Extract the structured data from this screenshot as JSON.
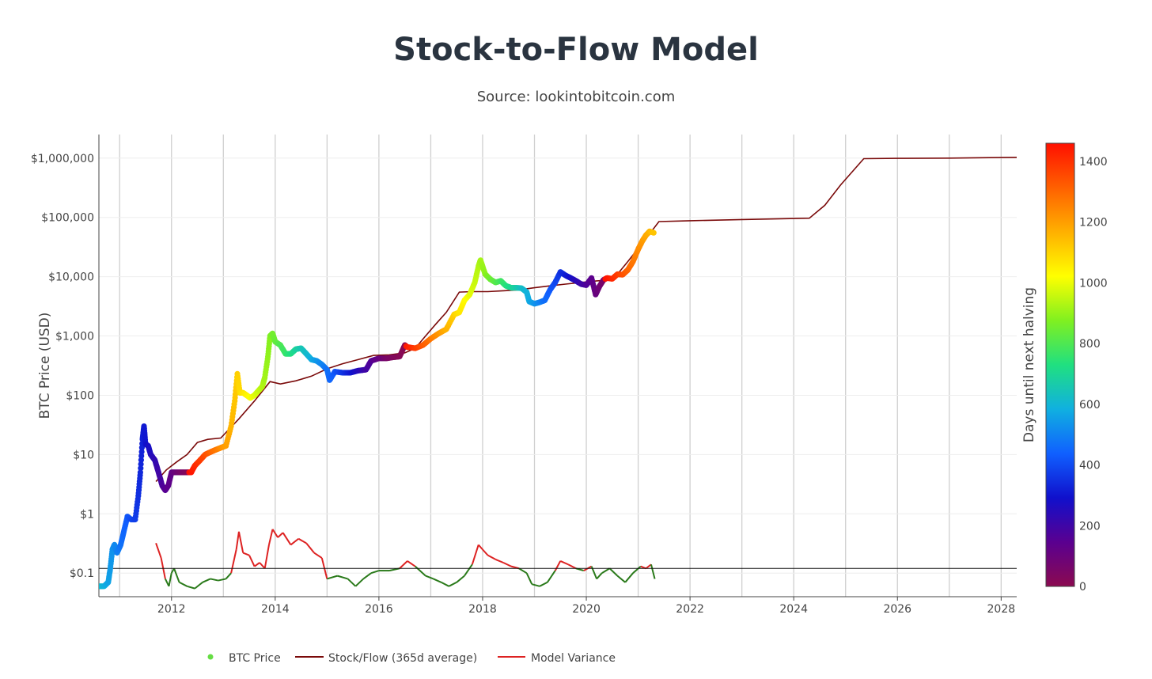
{
  "title": "Stock-to-Flow Model",
  "subtitle": "Source: lookintobitcoin.com",
  "chart_data": {
    "type": "scatter",
    "title": "Stock-to-Flow Model",
    "subtitle": "Source: lookintobitcoin.com",
    "ylabel": "BTC Price (USD)",
    "xlabel": "",
    "yscale": "log",
    "xlim": [
      2010.6,
      2028.3
    ],
    "ylim": [
      0.04,
      2500000
    ],
    "grid": true,
    "x_ticks": [
      "2012",
      "2014",
      "2016",
      "2018",
      "2020",
      "2022",
      "2024",
      "2026",
      "2028"
    ],
    "x_tick_values": [
      2012,
      2014,
      2016,
      2018,
      2020,
      2022,
      2024,
      2026,
      2028
    ],
    "y_ticks": [
      "$0.1",
      "$1",
      "$10",
      "$100",
      "$1,000",
      "$10,000",
      "$100,000",
      "$1,000,000"
    ],
    "y_tick_values": [
      0.1,
      1,
      10,
      100,
      1000,
      10000,
      100000,
      1000000
    ],
    "colorbar": {
      "title": "Days until next halving",
      "min": 0,
      "max": 1460,
      "ticks": [
        "0",
        "200",
        "400",
        "600",
        "800",
        "1000",
        "1200",
        "1400"
      ],
      "tick_values": [
        0,
        200,
        400,
        600,
        800,
        1000,
        1200,
        1400
      ],
      "colors": [
        "#8b0a50",
        "#5a0090",
        "#1010cc",
        "#1060ff",
        "#10b0e0",
        "#20e080",
        "#80f020",
        "#ffff00",
        "#ffb000",
        "#ff6000",
        "#ff1000"
      ]
    },
    "legend_position": "bottom",
    "reference_line_y": 0.12,
    "series": [
      {
        "name": "BTC Price",
        "mode": "markers",
        "color": "#66dd44",
        "points": [
          [
            2010.6,
            0.06,
            625
          ],
          [
            2010.7,
            0.06,
            590
          ],
          [
            2010.78,
            0.07,
            560
          ],
          [
            2010.82,
            0.12,
            545
          ],
          [
            2010.86,
            0.25,
            530
          ],
          [
            2010.9,
            0.3,
            515
          ],
          [
            2010.95,
            0.22,
            500
          ],
          [
            2011.02,
            0.3,
            470
          ],
          [
            2011.08,
            0.5,
            450
          ],
          [
            2011.15,
            0.9,
            425
          ],
          [
            2011.22,
            0.8,
            400
          ],
          [
            2011.3,
            0.8,
            375
          ],
          [
            2011.36,
            2,
            350
          ],
          [
            2011.4,
            5,
            335
          ],
          [
            2011.44,
            18,
            320
          ],
          [
            2011.47,
            30,
            310
          ],
          [
            2011.5,
            15,
            300
          ],
          [
            2011.55,
            14,
            280
          ],
          [
            2011.6,
            10,
            260
          ],
          [
            2011.68,
            8,
            230
          ],
          [
            2011.75,
            5,
            200
          ],
          [
            2011.82,
            3,
            175
          ],
          [
            2011.88,
            2.5,
            155
          ],
          [
            2011.94,
            3,
            135
          ],
          [
            2012.0,
            5,
            125
          ],
          [
            2012.1,
            5,
            90
          ],
          [
            2012.2,
            5,
            55
          ],
          [
            2012.3,
            5,
            25
          ],
          [
            2012.38,
            5,
            1455
          ],
          [
            2012.45,
            6.5,
            1420
          ],
          [
            2012.55,
            8,
            1385
          ],
          [
            2012.65,
            10,
            1350
          ],
          [
            2012.75,
            11,
            1310
          ],
          [
            2012.85,
            12,
            1275
          ],
          [
            2012.95,
            13,
            1235
          ],
          [
            2013.05,
            14,
            1200
          ],
          [
            2013.15,
            30,
            1160
          ],
          [
            2013.22,
            80,
            1130
          ],
          [
            2013.27,
            230,
            1110
          ],
          [
            2013.32,
            110,
            1090
          ],
          [
            2013.38,
            110,
            1070
          ],
          [
            2013.45,
            100,
            1045
          ],
          [
            2013.52,
            90,
            1020
          ],
          [
            2013.6,
            100,
            990
          ],
          [
            2013.68,
            120,
            960
          ],
          [
            2013.75,
            140,
            935
          ],
          [
            2013.8,
            200,
            915
          ],
          [
            2013.86,
            450,
            895
          ],
          [
            2013.9,
            1000,
            880
          ],
          [
            2013.95,
            1100,
            860
          ],
          [
            2014.0,
            800,
            840
          ],
          [
            2014.1,
            700,
            800
          ],
          [
            2014.2,
            500,
            765
          ],
          [
            2014.3,
            500,
            730
          ],
          [
            2014.4,
            600,
            690
          ],
          [
            2014.5,
            620,
            655
          ],
          [
            2014.6,
            500,
            620
          ],
          [
            2014.7,
            400,
            580
          ],
          [
            2014.8,
            380,
            545
          ],
          [
            2014.9,
            330,
            510
          ],
          [
            2015.0,
            270,
            470
          ],
          [
            2015.05,
            180,
            455
          ],
          [
            2015.15,
            250,
            420
          ],
          [
            2015.3,
            240,
            365
          ],
          [
            2015.45,
            240,
            310
          ],
          [
            2015.6,
            260,
            255
          ],
          [
            2015.75,
            270,
            200
          ],
          [
            2015.85,
            380,
            165
          ],
          [
            2016.0,
            420,
            110
          ],
          [
            2016.15,
            420,
            55
          ],
          [
            2016.3,
            440,
            30
          ],
          [
            2016.4,
            450,
            15
          ],
          [
            2016.5,
            700,
            5
          ],
          [
            2016.55,
            650,
            1440
          ],
          [
            2016.7,
            620,
            1385
          ],
          [
            2016.85,
            700,
            1330
          ],
          [
            2017.0,
            900,
            1275
          ],
          [
            2017.15,
            1100,
            1220
          ],
          [
            2017.3,
            1300,
            1165
          ],
          [
            2017.45,
            2300,
            1110
          ],
          [
            2017.55,
            2500,
            1070
          ],
          [
            2017.65,
            4000,
            1035
          ],
          [
            2017.75,
            5000,
            995
          ],
          [
            2017.85,
            8000,
            960
          ],
          [
            2017.92,
            15000,
            935
          ],
          [
            2017.96,
            19000,
            920
          ],
          [
            2018.05,
            11000,
            890
          ],
          [
            2018.15,
            9000,
            850
          ],
          [
            2018.25,
            8000,
            815
          ],
          [
            2018.35,
            8500,
            780
          ],
          [
            2018.45,
            7000,
            740
          ],
          [
            2018.55,
            6500,
            705
          ],
          [
            2018.65,
            6500,
            670
          ],
          [
            2018.75,
            6400,
            630
          ],
          [
            2018.85,
            5500,
            595
          ],
          [
            2018.9,
            3800,
            575
          ],
          [
            2019.0,
            3500,
            540
          ],
          [
            2019.1,
            3700,
            505
          ],
          [
            2019.2,
            4000,
            465
          ],
          [
            2019.3,
            6000,
            430
          ],
          [
            2019.4,
            8000,
            395
          ],
          [
            2019.5,
            12000,
            355
          ],
          [
            2019.6,
            10500,
            320
          ],
          [
            2019.7,
            9500,
            285
          ],
          [
            2019.8,
            8500,
            245
          ],
          [
            2019.9,
            7500,
            210
          ],
          [
            2020.0,
            7200,
            175
          ],
          [
            2020.1,
            9500,
            140
          ],
          [
            2020.18,
            5000,
            110
          ],
          [
            2020.25,
            6800,
            85
          ],
          [
            2020.33,
            8800,
            55
          ],
          [
            2020.4,
            9500,
            1455
          ],
          [
            2020.5,
            9200,
            1420
          ],
          [
            2020.6,
            11000,
            1385
          ],
          [
            2020.7,
            10800,
            1350
          ],
          [
            2020.8,
            13000,
            1310
          ],
          [
            2020.9,
            18000,
            1275
          ],
          [
            2021.0,
            29000,
            1240
          ],
          [
            2021.08,
            40000,
            1210
          ],
          [
            2021.15,
            50000,
            1185
          ],
          [
            2021.22,
            58000,
            1160
          ],
          [
            2021.3,
            55000,
            1130
          ]
        ]
      },
      {
        "name": "Stock/Flow (365d average)",
        "mode": "line",
        "color": "#7a0a0a",
        "points": [
          [
            2011.7,
            3.5
          ],
          [
            2011.9,
            5.5
          ],
          [
            2012.1,
            7.5
          ],
          [
            2012.3,
            10
          ],
          [
            2012.5,
            16
          ],
          [
            2012.7,
            18
          ],
          [
            2012.95,
            19
          ],
          [
            2013.3,
            40
          ],
          [
            2013.6,
            80
          ],
          [
            2013.9,
            170
          ],
          [
            2014.1,
            155
          ],
          [
            2014.4,
            175
          ],
          [
            2014.7,
            210
          ],
          [
            2015.0,
            280
          ],
          [
            2015.3,
            340
          ],
          [
            2015.6,
            400
          ],
          [
            2015.9,
            470
          ],
          [
            2016.2,
            480
          ],
          [
            2016.5,
            520
          ],
          [
            2016.7,
            620
          ],
          [
            2016.9,
            1000
          ],
          [
            2017.1,
            1600
          ],
          [
            2017.3,
            2500
          ],
          [
            2017.55,
            5500
          ],
          [
            2017.8,
            5600
          ],
          [
            2018.1,
            5600
          ],
          [
            2018.4,
            5800
          ],
          [
            2018.7,
            6000
          ],
          [
            2019.0,
            6500
          ],
          [
            2019.3,
            7000
          ],
          [
            2019.6,
            7500
          ],
          [
            2019.9,
            8000
          ],
          [
            2020.2,
            8500
          ],
          [
            2020.4,
            8700
          ],
          [
            2020.6,
            11000
          ],
          [
            2020.8,
            18000
          ],
          [
            2021.0,
            30000
          ],
          [
            2021.2,
            50000
          ],
          [
            2021.4,
            85000
          ],
          [
            2022.0,
            88000
          ],
          [
            2023.0,
            92000
          ],
          [
            2024.3,
            97000
          ],
          [
            2024.6,
            160000
          ],
          [
            2024.9,
            350000
          ],
          [
            2025.35,
            980000
          ],
          [
            2026.0,
            990000
          ],
          [
            2027.0,
            1000000
          ],
          [
            2028.3,
            1030000
          ]
        ]
      },
      {
        "name": "Model Variance",
        "mode": "line",
        "color": "#dd2222",
        "color_below_reference": "#2a7a1a",
        "points": [
          [
            2011.7,
            0.32
          ],
          [
            2011.8,
            0.18
          ],
          [
            2011.88,
            0.08
          ],
          [
            2011.95,
            0.06
          ],
          [
            2012.0,
            0.1
          ],
          [
            2012.05,
            0.12
          ],
          [
            2012.15,
            0.07
          ],
          [
            2012.3,
            0.06
          ],
          [
            2012.45,
            0.055
          ],
          [
            2012.6,
            0.07
          ],
          [
            2012.75,
            0.08
          ],
          [
            2012.9,
            0.075
          ],
          [
            2013.05,
            0.08
          ],
          [
            2013.15,
            0.1
          ],
          [
            2013.25,
            0.25
          ],
          [
            2013.3,
            0.5
          ],
          [
            2013.38,
            0.22
          ],
          [
            2013.5,
            0.2
          ],
          [
            2013.6,
            0.13
          ],
          [
            2013.7,
            0.15
          ],
          [
            2013.8,
            0.12
          ],
          [
            2013.88,
            0.3
          ],
          [
            2013.95,
            0.55
          ],
          [
            2014.05,
            0.4
          ],
          [
            2014.15,
            0.48
          ],
          [
            2014.3,
            0.3
          ],
          [
            2014.45,
            0.38
          ],
          [
            2014.6,
            0.32
          ],
          [
            2014.75,
            0.22
          ],
          [
            2014.9,
            0.18
          ],
          [
            2015.0,
            0.08
          ],
          [
            2015.2,
            0.09
          ],
          [
            2015.4,
            0.08
          ],
          [
            2015.55,
            0.06
          ],
          [
            2015.7,
            0.08
          ],
          [
            2015.85,
            0.1
          ],
          [
            2016.0,
            0.11
          ],
          [
            2016.2,
            0.11
          ],
          [
            2016.4,
            0.12
          ],
          [
            2016.55,
            0.16
          ],
          [
            2016.7,
            0.13
          ],
          [
            2016.9,
            0.09
          ],
          [
            2017.05,
            0.08
          ],
          [
            2017.2,
            0.07
          ],
          [
            2017.35,
            0.06
          ],
          [
            2017.5,
            0.07
          ],
          [
            2017.65,
            0.09
          ],
          [
            2017.8,
            0.14
          ],
          [
            2017.92,
            0.3
          ],
          [
            2018.0,
            0.25
          ],
          [
            2018.1,
            0.2
          ],
          [
            2018.25,
            0.17
          ],
          [
            2018.4,
            0.15
          ],
          [
            2018.55,
            0.13
          ],
          [
            2018.7,
            0.12
          ],
          [
            2018.85,
            0.1
          ],
          [
            2018.95,
            0.065
          ],
          [
            2019.1,
            0.06
          ],
          [
            2019.25,
            0.07
          ],
          [
            2019.4,
            0.11
          ],
          [
            2019.5,
            0.16
          ],
          [
            2019.65,
            0.14
          ],
          [
            2019.8,
            0.12
          ],
          [
            2019.95,
            0.11
          ],
          [
            2020.1,
            0.13
          ],
          [
            2020.2,
            0.08
          ],
          [
            2020.3,
            0.1
          ],
          [
            2020.45,
            0.12
          ],
          [
            2020.6,
            0.09
          ],
          [
            2020.75,
            0.07
          ],
          [
            2020.9,
            0.1
          ],
          [
            2021.05,
            0.13
          ],
          [
            2021.15,
            0.12
          ],
          [
            2021.25,
            0.14
          ],
          [
            2021.32,
            0.08
          ]
        ]
      }
    ]
  }
}
